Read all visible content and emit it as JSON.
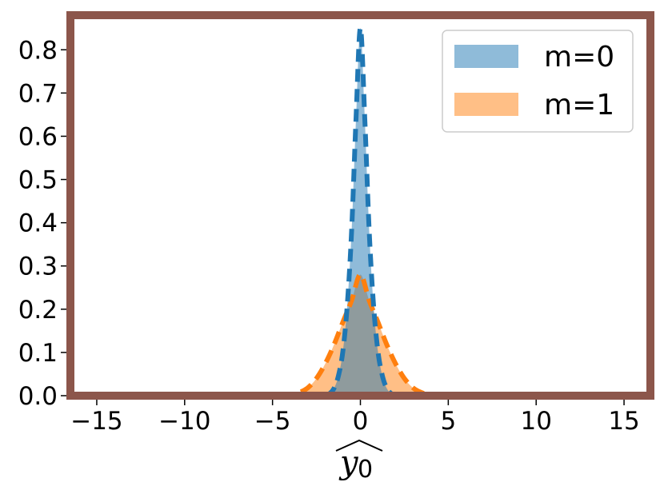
{
  "chart_data": {
    "type": "area",
    "title": "",
    "xlabel": "y0",
    "xlabel_base": "y",
    "xlabel_sub": "0",
    "ylabel": "",
    "xlim": [
      -16.5,
      16.5
    ],
    "ylim": [
      0,
      0.88
    ],
    "xticks": [
      -15,
      -10,
      -5,
      0,
      5,
      10,
      15
    ],
    "xtick_labels": [
      "−15",
      "−10",
      "−5",
      "0",
      "5",
      "10",
      "15"
    ],
    "yticks": [
      0.0,
      0.1,
      0.2,
      0.3,
      0.4,
      0.5,
      0.6,
      0.7,
      0.8
    ],
    "ytick_labels": [
      "0.0",
      "0.1",
      "0.2",
      "0.3",
      "0.4",
      "0.5",
      "0.6",
      "0.7",
      "0.8"
    ],
    "grid": false,
    "legend_position": "top-right",
    "frame_color": "#8c564b",
    "series": [
      {
        "name": "m=0",
        "fill_color": "#1f77b4",
        "line_color": "#1f77b4",
        "peak": 0.85,
        "x": [
          -2.0,
          -1.75,
          -1.5,
          -1.25,
          -1.0,
          -0.75,
          -0.5,
          -0.25,
          0.0,
          0.25,
          0.5,
          0.75,
          1.0,
          1.25,
          1.5,
          1.75,
          2.0
        ],
        "y": [
          0.001,
          0.005,
          0.017,
          0.046,
          0.102,
          0.208,
          0.381,
          0.64,
          0.85,
          0.64,
          0.381,
          0.208,
          0.102,
          0.046,
          0.017,
          0.005,
          0.001
        ]
      },
      {
        "name": "m=1",
        "fill_color": "#ff7f0e",
        "line_color": "#ff7f0e",
        "peak": 0.28,
        "x": [
          -4.5,
          -4.0,
          -3.5,
          -3.0,
          -2.5,
          -2.0,
          -1.5,
          -1.0,
          -0.5,
          0.0,
          0.5,
          1.0,
          1.5,
          2.0,
          2.5,
          3.0,
          3.5,
          4.0,
          4.5
        ],
        "y": [
          0.0005,
          0.0022,
          0.0069,
          0.018,
          0.04,
          0.074,
          0.118,
          0.17,
          0.22,
          0.28,
          0.22,
          0.17,
          0.118,
          0.074,
          0.04,
          0.018,
          0.0069,
          0.0022,
          0.0005
        ]
      }
    ]
  }
}
